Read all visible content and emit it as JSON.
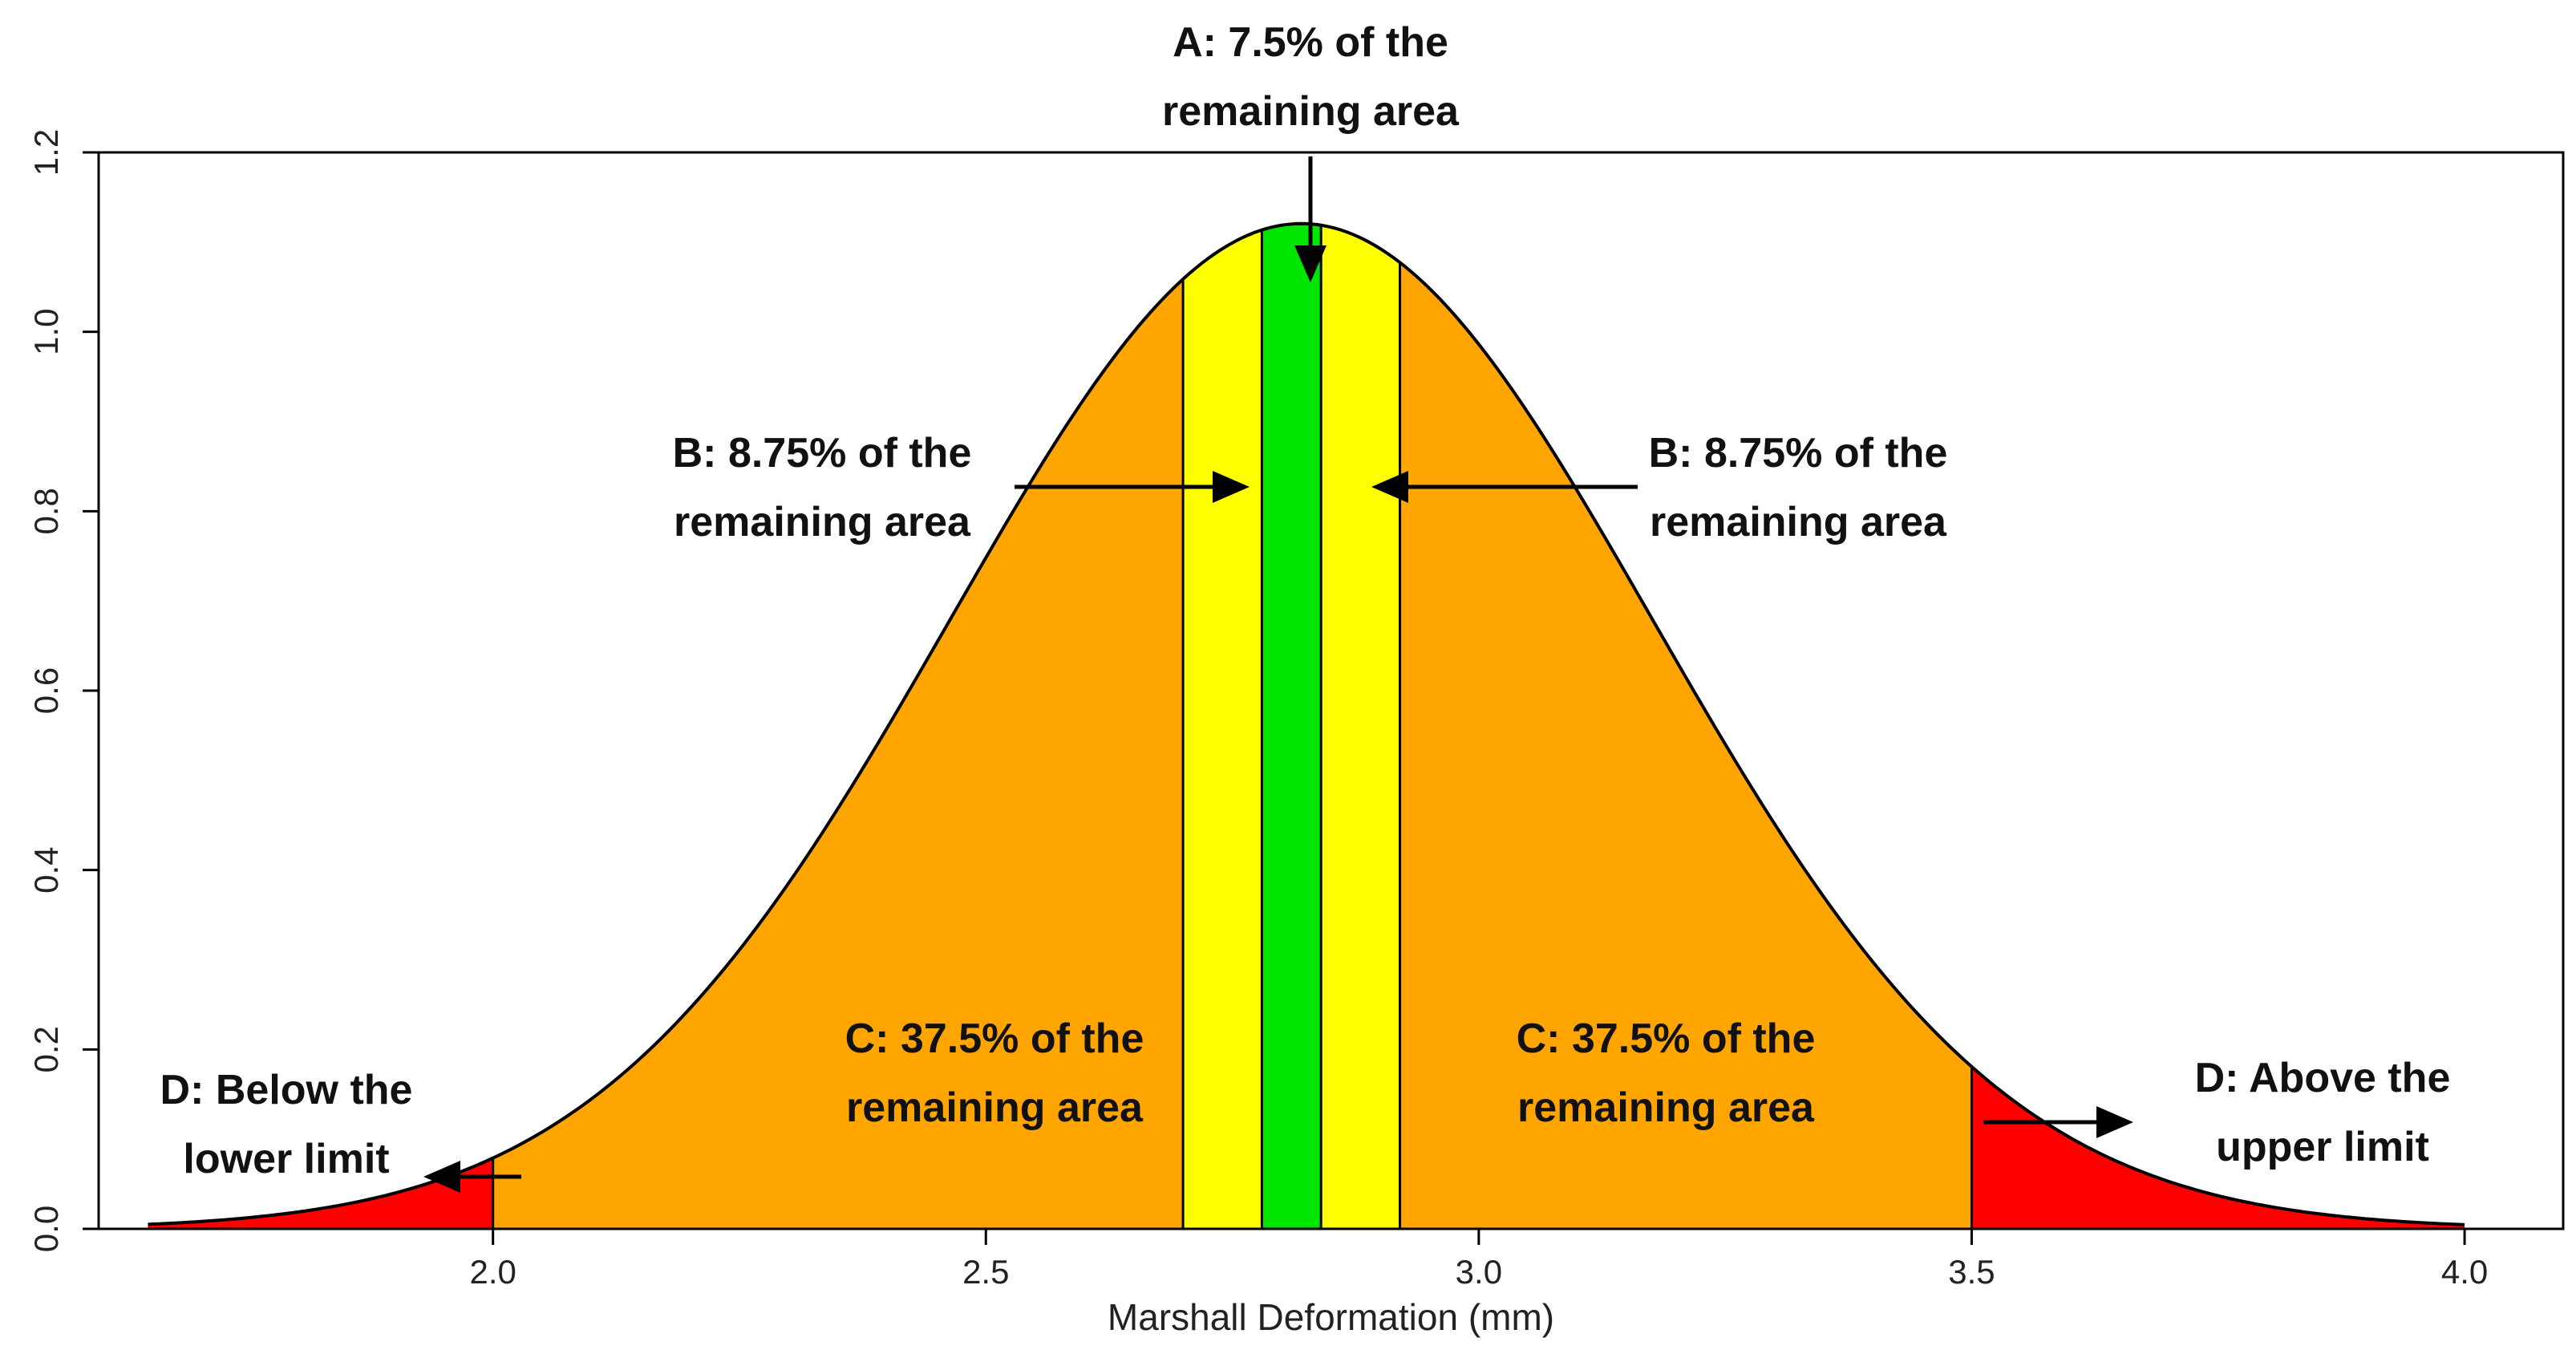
{
  "chart_data": {
    "type": "area",
    "xlabel": "Marshall Deformation (mm)",
    "ylabel": "",
    "xlim": [
      1.6,
      4.1
    ],
    "ylim": [
      0,
      1.2
    ],
    "x_ticks": [
      "2.0",
      "2.5",
      "3.0",
      "3.5",
      "4.0"
    ],
    "x_tick_values": [
      2.0,
      2.5,
      3.0,
      3.5,
      4.0
    ],
    "y_ticks": [
      "0.0",
      "0.2",
      "0.4",
      "0.6",
      "0.8",
      "1.0",
      "1.2"
    ],
    "y_tick_values": [
      0.0,
      0.2,
      0.4,
      0.6,
      0.8,
      1.0,
      1.2
    ],
    "grid": false,
    "curve": {
      "distribution": "normal",
      "mean": 2.82,
      "sd": 0.356,
      "x_start": 1.65,
      "x_end": 4.0
    },
    "regions": [
      {
        "x_from": 1.65,
        "x_to": 2.0,
        "color": "#ff0000"
      },
      {
        "x_from": 2.0,
        "x_to": 2.7,
        "color": "#ffa500"
      },
      {
        "x_from": 2.7,
        "x_to": 2.78,
        "color": "#ffff00"
      },
      {
        "x_from": 2.78,
        "x_to": 2.84,
        "color": "#00e600"
      },
      {
        "x_from": 2.84,
        "x_to": 2.92,
        "color": "#ffff00"
      },
      {
        "x_from": 2.92,
        "x_to": 3.5,
        "color": "#ffa500"
      },
      {
        "x_from": 3.5,
        "x_to": 4.0,
        "color": "#ff0000"
      }
    ],
    "annotations": [
      {
        "id": "A",
        "lines": [
          "A: 7.5% of the",
          "remaining area"
        ]
      },
      {
        "id": "B-left",
        "lines": [
          "B: 8.75% of the",
          "remaining area"
        ]
      },
      {
        "id": "B-right",
        "lines": [
          "B: 8.75% of the",
          "remaining area"
        ]
      },
      {
        "id": "C-left",
        "lines": [
          "C: 37.5% of the",
          "remaining area"
        ]
      },
      {
        "id": "C-right",
        "lines": [
          "C: 37.5% of the",
          "remaining area"
        ]
      },
      {
        "id": "D-left",
        "lines": [
          "D: Below the",
          "lower limit"
        ]
      },
      {
        "id": "D-right",
        "lines": [
          "D: Above the",
          "upper limit"
        ]
      }
    ]
  }
}
